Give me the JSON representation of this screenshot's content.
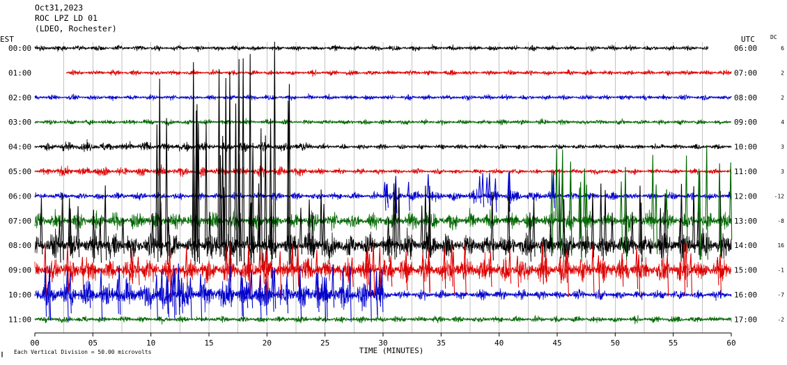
{
  "header": {
    "date": "Oct31,2023",
    "station": "ROC LPZ LD 01",
    "network": "(LDEO, Rochester)"
  },
  "columns": {
    "left_title": "EST",
    "right_title": "UTC",
    "dc_title": "DC"
  },
  "footer": {
    "xlabel": "TIME (MINUTES)",
    "scale_note": "Each Vertical Division =   50.00 microvolts"
  },
  "colors": {
    "black": "#000000",
    "red": "#dd0000",
    "blue": "#0000cc",
    "green": "#006600",
    "grid": "#999999"
  },
  "chart_data": {
    "type": "line",
    "title": "",
    "xlabel": "TIME (MINUTES)",
    "ylabel": "",
    "xlim": [
      0,
      60
    ],
    "xticks": [
      "00",
      "05",
      "10",
      "15",
      "20",
      "25",
      "30",
      "35",
      "40",
      "45",
      "50",
      "55",
      "60"
    ],
    "grid": "vertical lines every 2.5 minutes",
    "traces": [
      {
        "est": "00:00",
        "utc": "06:00",
        "dc": "6",
        "color": "black",
        "start_min": 0.0,
        "end_min": 58.0
      },
      {
        "est": "01:00",
        "utc": "07:00",
        "dc": "2",
        "color": "red",
        "start_min": 2.7,
        "end_min": 60.0
      },
      {
        "est": "02:00",
        "utc": "08:00",
        "dc": "2",
        "color": "blue",
        "start_min": 0.0,
        "end_min": 60.0
      },
      {
        "est": "03:00",
        "utc": "09:00",
        "dc": "4",
        "color": "green",
        "start_min": 0.0,
        "end_min": 60.0
      },
      {
        "est": "04:00",
        "utc": "10:00",
        "dc": "3",
        "color": "black",
        "start_min": 0.0,
        "end_min": 60.0
      },
      {
        "est": "05:00",
        "utc": "11:00",
        "dc": "3",
        "color": "red",
        "start_min": 0.0,
        "end_min": 60.0
      },
      {
        "est": "06:00",
        "utc": "12:00",
        "dc": "-12",
        "color": "blue",
        "start_min": 0.0,
        "end_min": 60.0
      },
      {
        "est": "07:00",
        "utc": "13:00",
        "dc": "-8",
        "color": "green",
        "start_min": 0.0,
        "end_min": 60.0
      },
      {
        "est": "08:00",
        "utc": "14:00",
        "dc": "16",
        "color": "black",
        "start_min": 0.0,
        "end_min": 60.0
      },
      {
        "est": "09:00",
        "utc": "15:00",
        "dc": "-1",
        "color": "red",
        "start_min": 0.0,
        "end_min": 60.0
      },
      {
        "est": "10:00",
        "utc": "16:00",
        "dc": "-7",
        "color": "blue",
        "start_min": 0.0,
        "end_min": 60.0
      },
      {
        "est": "11:00",
        "utc": "17:00",
        "dc": "-2",
        "color": "green",
        "start_min": 0.0,
        "end_min": 60.0
      }
    ]
  }
}
